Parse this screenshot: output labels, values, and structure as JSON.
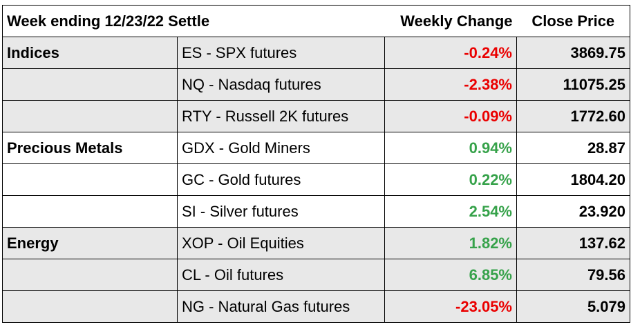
{
  "header": {
    "title": "Week ending 12/23/22 Settle",
    "weekly_change": "Weekly Change",
    "close_price": "Close Price"
  },
  "colors": {
    "negative": "#ea0000",
    "positive": "#36a24a",
    "shaded_row": "#e8e8e8"
  },
  "rows": [
    {
      "group": "Indices",
      "instrument": "ES - SPX futures",
      "change": "-0.24%",
      "close": "3869.75"
    },
    {
      "group": "",
      "instrument": "NQ - Nasdaq futures",
      "change": "-2.38%",
      "close": "11075.25"
    },
    {
      "group": "",
      "instrument": "RTY - Russell 2K futures",
      "change": "-0.09%",
      "close": "1772.60"
    },
    {
      "group": "Precious Metals",
      "instrument": "GDX - Gold Miners",
      "change": "0.94%",
      "close": "28.87"
    },
    {
      "group": "",
      "instrument": "GC - Gold futures",
      "change": "0.22%",
      "close": "1804.20"
    },
    {
      "group": "",
      "instrument": "SI - Silver futures",
      "change": "2.54%",
      "close": "23.920"
    },
    {
      "group": "Energy",
      "instrument": "XOP - Oil Equities",
      "change": "1.82%",
      "close": "137.62"
    },
    {
      "group": "",
      "instrument": "CL - Oil futures",
      "change": "6.85%",
      "close": "79.56"
    },
    {
      "group": "",
      "instrument": "NG - Natural Gas futures",
      "change": "-23.05%",
      "close": "5.079"
    }
  ]
}
